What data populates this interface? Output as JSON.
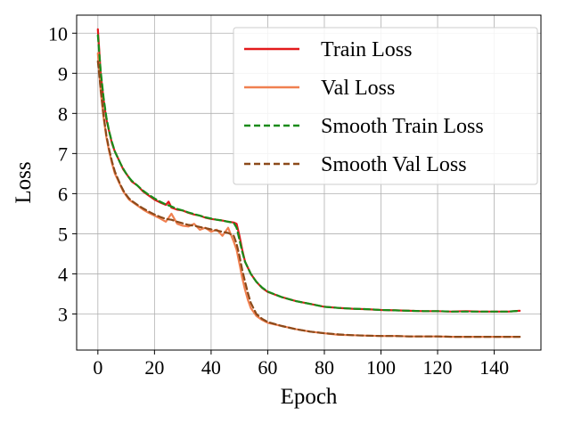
{
  "chart_data": {
    "type": "line",
    "title": "",
    "xlabel": "Epoch",
    "ylabel": "Loss",
    "xlim": [
      -7.5,
      156.5
    ],
    "ylim": [
      2.1,
      10.45
    ],
    "xticks": [
      0,
      20,
      40,
      60,
      80,
      100,
      120,
      140
    ],
    "yticks": [
      3,
      4,
      5,
      6,
      7,
      8,
      9,
      10
    ],
    "grid": true,
    "legend_position": "top-right",
    "series": [
      {
        "name": "Train Loss",
        "color": "#e31a1c",
        "style": "solid",
        "x": [
          0,
          1,
          2,
          3,
          4,
          5,
          6,
          7,
          8,
          9,
          10,
          11,
          12,
          14,
          16,
          18,
          20,
          22,
          24,
          25,
          26,
          28,
          30,
          32,
          34,
          36,
          38,
          40,
          42,
          44,
          46,
          48,
          49,
          50,
          51,
          52,
          54,
          56,
          58,
          60,
          65,
          70,
          75,
          80,
          85,
          90,
          95,
          100,
          105,
          110,
          115,
          120,
          125,
          130,
          135,
          140,
          145,
          149
        ],
        "values": [
          10.1,
          9.0,
          8.35,
          7.85,
          7.55,
          7.25,
          7.05,
          6.9,
          6.75,
          6.6,
          6.5,
          6.4,
          6.3,
          6.2,
          6.05,
          5.95,
          5.85,
          5.78,
          5.72,
          5.8,
          5.65,
          5.6,
          5.58,
          5.52,
          5.48,
          5.45,
          5.4,
          5.37,
          5.35,
          5.33,
          5.3,
          5.28,
          5.25,
          4.95,
          4.6,
          4.3,
          4.0,
          3.8,
          3.65,
          3.55,
          3.42,
          3.32,
          3.25,
          3.18,
          3.15,
          3.13,
          3.12,
          3.1,
          3.09,
          3.08,
          3.07,
          3.07,
          3.06,
          3.07,
          3.06,
          3.06,
          3.06,
          3.08
        ]
      },
      {
        "name": "Val Loss",
        "color": "#f08050",
        "style": "solid",
        "x": [
          0,
          1,
          2,
          3,
          4,
          5,
          6,
          7,
          8,
          9,
          10,
          11,
          12,
          14,
          16,
          18,
          20,
          22,
          24,
          26,
          28,
          30,
          32,
          34,
          36,
          38,
          40,
          42,
          44,
          46,
          48,
          49,
          50,
          51,
          52,
          53,
          54,
          56,
          58,
          60,
          65,
          70,
          75,
          80,
          85,
          90,
          95,
          100,
          105,
          110,
          115,
          120,
          125,
          130,
          135,
          140,
          145,
          149
        ],
        "values": [
          9.5,
          8.55,
          7.9,
          7.4,
          7.05,
          6.75,
          6.5,
          6.35,
          6.2,
          6.05,
          5.95,
          5.85,
          5.8,
          5.7,
          5.6,
          5.52,
          5.45,
          5.38,
          5.3,
          5.5,
          5.25,
          5.2,
          5.18,
          5.25,
          5.1,
          5.15,
          5.05,
          5.1,
          4.95,
          5.15,
          4.8,
          4.6,
          4.25,
          3.9,
          3.6,
          3.35,
          3.15,
          2.95,
          2.85,
          2.78,
          2.7,
          2.62,
          2.56,
          2.52,
          2.48,
          2.47,
          2.46,
          2.45,
          2.45,
          2.44,
          2.44,
          2.44,
          2.43,
          2.43,
          2.43,
          2.43,
          2.43,
          2.43
        ]
      },
      {
        "name": "Smooth Train Loss",
        "color": "#1a8c1a",
        "style": "dashed",
        "x": [
          0,
          1,
          2,
          3,
          4,
          5,
          6,
          7,
          8,
          9,
          10,
          11,
          12,
          14,
          16,
          18,
          20,
          22,
          24,
          26,
          28,
          30,
          32,
          34,
          36,
          38,
          40,
          42,
          44,
          46,
          48,
          49,
          50,
          51,
          52,
          54,
          56,
          58,
          60,
          65,
          70,
          75,
          80,
          85,
          90,
          95,
          100,
          105,
          110,
          115,
          120,
          125,
          130,
          135,
          140,
          145,
          149
        ],
        "values": [
          9.95,
          9.05,
          8.4,
          7.9,
          7.55,
          7.28,
          7.05,
          6.9,
          6.75,
          6.62,
          6.5,
          6.4,
          6.32,
          6.2,
          6.07,
          5.97,
          5.88,
          5.8,
          5.73,
          5.68,
          5.62,
          5.58,
          5.53,
          5.49,
          5.45,
          5.41,
          5.38,
          5.35,
          5.33,
          5.3,
          5.27,
          5.15,
          4.85,
          4.55,
          4.3,
          4.0,
          3.8,
          3.66,
          3.56,
          3.42,
          3.32,
          3.25,
          3.18,
          3.15,
          3.13,
          3.12,
          3.1,
          3.09,
          3.08,
          3.07,
          3.07,
          3.06,
          3.06,
          3.06,
          3.06,
          3.06,
          3.08
        ]
      },
      {
        "name": "Smooth Val Loss",
        "color": "#8c4a1a",
        "style": "dashed",
        "x": [
          0,
          1,
          2,
          3,
          4,
          5,
          6,
          7,
          8,
          9,
          10,
          11,
          12,
          14,
          16,
          18,
          20,
          22,
          24,
          26,
          28,
          30,
          32,
          34,
          36,
          38,
          40,
          42,
          44,
          46,
          48,
          49,
          50,
          51,
          52,
          53,
          54,
          56,
          58,
          60,
          65,
          70,
          75,
          80,
          85,
          90,
          95,
          100,
          105,
          110,
          115,
          120,
          125,
          130,
          135,
          140,
          145,
          149
        ],
        "values": [
          9.3,
          8.6,
          7.95,
          7.45,
          7.1,
          6.8,
          6.55,
          6.38,
          6.22,
          6.08,
          5.97,
          5.88,
          5.82,
          5.72,
          5.63,
          5.55,
          5.48,
          5.42,
          5.37,
          5.35,
          5.3,
          5.26,
          5.22,
          5.2,
          5.17,
          5.14,
          5.11,
          5.08,
          5.05,
          5.02,
          4.95,
          4.75,
          4.45,
          4.1,
          3.8,
          3.52,
          3.28,
          3.0,
          2.88,
          2.8,
          2.7,
          2.62,
          2.56,
          2.52,
          2.49,
          2.47,
          2.46,
          2.45,
          2.45,
          2.44,
          2.44,
          2.44,
          2.43,
          2.43,
          2.43,
          2.43,
          2.43,
          2.43
        ]
      }
    ]
  }
}
